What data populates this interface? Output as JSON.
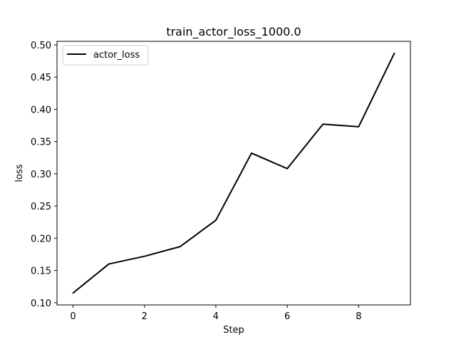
{
  "chart_data": {
    "type": "line",
    "title": "train_actor_loss_1000.0",
    "xlabel": "Step",
    "ylabel": "loss",
    "xlim": [
      -0.45,
      9.45
    ],
    "ylim": [
      0.0965,
      0.5055
    ],
    "x_ticks": [
      0,
      2,
      4,
      6,
      8
    ],
    "x_tick_labels": [
      "0",
      "2",
      "4",
      "6",
      "8"
    ],
    "y_ticks": [
      0.1,
      0.15,
      0.2,
      0.25,
      0.3,
      0.35,
      0.4,
      0.45,
      0.5
    ],
    "y_tick_labels": [
      "0.10",
      "0.15",
      "0.20",
      "0.25",
      "0.30",
      "0.35",
      "0.40",
      "0.45",
      "0.50"
    ],
    "grid": false,
    "legend": {
      "position": "top-left",
      "entries": [
        "actor_loss"
      ]
    },
    "series": [
      {
        "name": "actor_loss",
        "color": "#000000",
        "x": [
          0,
          1,
          2,
          3,
          4,
          5,
          6,
          7,
          8,
          9
        ],
        "y": [
          0.115,
          0.16,
          0.172,
          0.187,
          0.228,
          0.332,
          0.308,
          0.377,
          0.373,
          0.487
        ]
      }
    ]
  }
}
